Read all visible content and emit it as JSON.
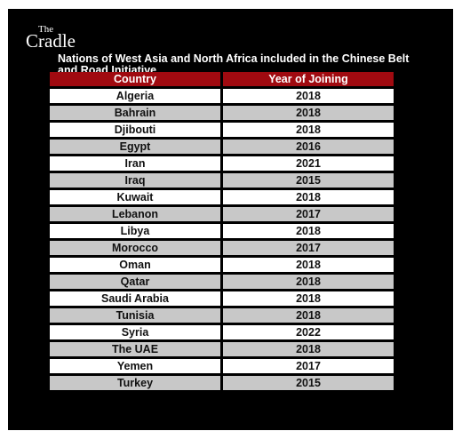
{
  "brand": {
    "logo_the": "The",
    "logo_cradle": "Cradle"
  },
  "title": "Nations of West Asia and North Africa included in the Chinese Belt and Road Initiative",
  "colors": {
    "background": "#000000",
    "header": "#a00a10",
    "row_light": "#ffffff",
    "row_dark": "#c8c8c8"
  },
  "chart_data": {
    "type": "table",
    "columns": [
      "Country",
      "Year of Joining"
    ],
    "rows": [
      {
        "country": "Algeria",
        "year": "2018"
      },
      {
        "country": "Bahrain",
        "year": "2018"
      },
      {
        "country": "Djibouti",
        "year": "2018"
      },
      {
        "country": "Egypt",
        "year": "2016"
      },
      {
        "country": "Iran",
        "year": "2021"
      },
      {
        "country": "Iraq",
        "year": "2015"
      },
      {
        "country": "Kuwait",
        "year": "2018"
      },
      {
        "country": "Lebanon",
        "year": "2017"
      },
      {
        "country": "Libya",
        "year": "2018"
      },
      {
        "country": "Morocco",
        "year": "2017"
      },
      {
        "country": "Oman",
        "year": "2018"
      },
      {
        "country": "Qatar",
        "year": "2018"
      },
      {
        "country": "Saudi Arabia",
        "year": "2018"
      },
      {
        "country": "Tunisia",
        "year": "2018"
      },
      {
        "country": "Syria",
        "year": "2022"
      },
      {
        "country": "The UAE",
        "year": "2018"
      },
      {
        "country": "Yemen",
        "year": "2017"
      },
      {
        "country": "Turkey",
        "year": "2015"
      }
    ]
  }
}
